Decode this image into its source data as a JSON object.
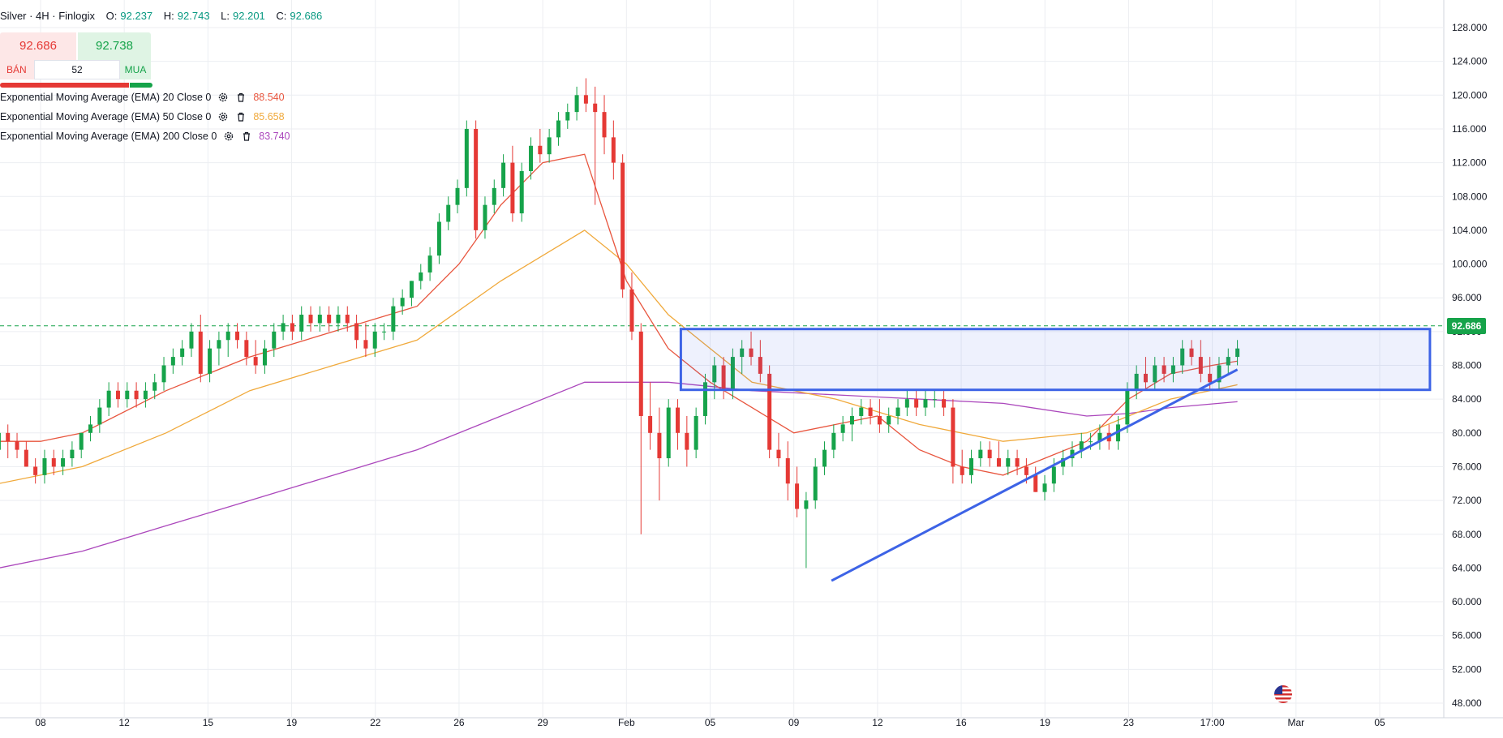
{
  "header": {
    "symbol": "Silver · 4H · Finlogix",
    "open_label": "O:",
    "open": "92.237",
    "high_label": "H:",
    "high": "92.743",
    "low_label": "L:",
    "low": "92.201",
    "close_label": "C:",
    "close": "92.686"
  },
  "trade_panel": {
    "sell_price": "92.686",
    "buy_price": "92.738",
    "sell_label": "BÁN",
    "buy_label": "MUA",
    "spread": "52"
  },
  "indicators": [
    {
      "label": "Exponential Moving Average (EMA) 20 Close 0",
      "value": "88.540",
      "color": "#e8553e"
    },
    {
      "label": "Exponential Moving Average (EMA) 50 Close 0",
      "value": "85.658",
      "color": "#f0a93b"
    },
    {
      "label": "Exponential Moving Average (EMA) 200 Close 0",
      "value": "83.740",
      "color": "#ab47bc"
    }
  ],
  "price_tag": "92.686",
  "colors": {
    "up": "#16a34a",
    "down": "#e53935",
    "drawing": "#3d63e6",
    "grid": "#eceef2"
  },
  "icons": [
    "gear-icon",
    "trash-icon",
    "us-flag-icon"
  ],
  "chart_data": {
    "type": "candlestick",
    "y_axis": {
      "range": [
        46,
        130
      ],
      "ticks": [
        128,
        124,
        120,
        116,
        112,
        108,
        104,
        100,
        96,
        92,
        88,
        84,
        80,
        76,
        72,
        68,
        64,
        60,
        56,
        52,
        48
      ],
      "tick_labels": [
        "128.000",
        "124.000",
        "120.000",
        "116.000",
        "112.000",
        "108.000",
        "104.000",
        "100.000",
        "96.000",
        "92.000",
        "88.000",
        "84.000",
        "80.000",
        "76.000",
        "72.000",
        "68.000",
        "64.000",
        "60.000",
        "56.000",
        "52.000",
        "48.000"
      ]
    },
    "x_axis": {
      "labels": [
        "08",
        "12",
        "15",
        "19",
        "22",
        "26",
        "29",
        "Feb",
        "05",
        "09",
        "12",
        "16",
        "19",
        "23",
        "17:00",
        "Mar",
        "05"
      ],
      "label_bars": [
        10,
        30,
        50,
        70,
        90,
        110,
        130,
        150,
        170,
        190,
        210,
        230,
        250,
        270,
        290,
        310,
        330
      ]
    },
    "last_price": 92.686,
    "ohlc_keys": [
      "open",
      "high",
      "low",
      "close"
    ],
    "candles": [
      [
        78,
        82,
        77,
        80
      ],
      [
        80,
        81,
        77,
        79
      ],
      [
        79,
        80,
        77,
        78
      ],
      [
        78,
        79,
        76,
        76
      ],
      [
        76,
        77,
        74,
        75
      ],
      [
        75,
        78,
        74,
        77
      ],
      [
        77,
        78,
        75,
        76
      ],
      [
        76,
        78,
        75,
        77
      ],
      [
        77,
        79,
        76,
        78
      ],
      [
        78,
        80,
        77,
        80
      ],
      [
        80,
        82,
        79,
        81
      ],
      [
        81,
        84,
        80,
        83
      ],
      [
        83,
        86,
        82,
        85
      ],
      [
        85,
        86,
        83,
        84
      ],
      [
        84,
        86,
        83,
        85
      ],
      [
        85,
        86,
        83,
        84
      ],
      [
        84,
        86,
        83,
        85
      ],
      [
        85,
        87,
        84,
        86
      ],
      [
        86,
        89,
        85,
        88
      ],
      [
        88,
        90,
        87,
        89
      ],
      [
        89,
        91,
        88,
        90
      ],
      [
        90,
        93,
        89,
        92
      ],
      [
        92,
        94,
        86,
        87
      ],
      [
        87,
        91,
        86,
        90
      ],
      [
        90,
        92,
        88,
        91
      ],
      [
        91,
        93,
        89,
        92
      ],
      [
        92,
        93,
        90,
        91
      ],
      [
        91,
        92,
        88,
        89
      ],
      [
        89,
        91,
        87,
        88
      ],
      [
        88,
        91,
        87,
        90
      ],
      [
        90,
        93,
        89,
        92
      ],
      [
        92,
        94,
        91,
        93
      ],
      [
        93,
        94,
        91,
        92
      ],
      [
        92,
        95,
        91,
        94
      ],
      [
        94,
        95,
        92,
        93
      ],
      [
        93,
        95,
        92,
        94
      ],
      [
        94,
        95,
        92,
        93
      ],
      [
        93,
        95,
        92,
        94
      ],
      [
        94,
        95,
        92,
        93
      ],
      [
        93,
        94,
        90,
        91
      ],
      [
        91,
        93,
        89,
        90
      ],
      [
        90,
        93,
        89,
        92
      ],
      [
        92,
        93,
        91,
        92
      ],
      [
        92,
        96,
        91,
        95
      ],
      [
        95,
        97,
        94,
        96
      ],
      [
        96,
        98,
        95,
        98
      ],
      [
        98,
        100,
        97,
        99
      ],
      [
        99,
        102,
        98,
        101
      ],
      [
        101,
        106,
        100,
        105
      ],
      [
        105,
        108,
        104,
        107
      ],
      [
        107,
        110,
        106,
        109
      ],
      [
        109,
        117,
        108,
        116
      ],
      [
        116,
        117,
        103,
        104
      ],
      [
        104,
        108,
        103,
        107
      ],
      [
        107,
        110,
        106,
        109
      ],
      [
        109,
        113,
        108,
        112
      ],
      [
        112,
        114,
        105,
        106
      ],
      [
        106,
        112,
        105,
        111
      ],
      [
        111,
        115,
        110,
        114
      ],
      [
        114,
        116,
        112,
        113
      ],
      [
        113,
        116,
        112,
        115
      ],
      [
        115,
        118,
        114,
        117
      ],
      [
        117,
        119,
        116,
        118
      ],
      [
        118,
        121,
        117,
        120
      ],
      [
        120,
        122,
        118,
        119
      ],
      [
        119,
        121,
        107,
        118
      ],
      [
        118,
        120,
        113,
        115
      ],
      [
        115,
        117,
        110,
        112
      ],
      [
        112,
        113,
        96,
        97
      ],
      [
        97,
        99,
        91,
        92
      ],
      [
        92,
        93,
        68,
        82
      ],
      [
        82,
        86,
        78,
        80
      ],
      [
        80,
        83,
        72,
        77
      ],
      [
        77,
        84,
        76,
        83
      ],
      [
        83,
        84,
        78,
        80
      ],
      [
        80,
        82,
        76,
        78
      ],
      [
        78,
        83,
        77,
        82
      ],
      [
        82,
        87,
        81,
        86
      ],
      [
        86,
        89,
        84,
        88
      ],
      [
        88,
        89,
        84,
        85
      ],
      [
        85,
        90,
        84,
        89
      ],
      [
        89,
        91,
        87,
        90
      ],
      [
        90,
        92,
        88,
        89
      ],
      [
        89,
        91,
        86,
        87
      ],
      [
        87,
        88,
        77,
        78
      ],
      [
        78,
        80,
        76,
        77
      ],
      [
        77,
        79,
        72,
        74
      ],
      [
        74,
        76,
        70,
        71
      ],
      [
        71,
        73,
        64,
        72
      ],
      [
        72,
        77,
        71,
        76
      ],
      [
        76,
        79,
        75,
        78
      ],
      [
        78,
        81,
        77,
        80
      ],
      [
        80,
        82,
        79,
        81
      ],
      [
        81,
        83,
        79,
        82
      ],
      [
        82,
        84,
        81,
        83
      ],
      [
        83,
        84,
        81,
        82
      ],
      [
        82,
        84,
        80,
        81
      ],
      [
        81,
        83,
        80,
        82
      ],
      [
        82,
        84,
        81,
        83
      ],
      [
        83,
        85,
        82,
        84
      ],
      [
        84,
        85,
        82,
        83
      ],
      [
        83,
        85,
        82,
        84
      ],
      [
        84,
        85,
        83,
        84
      ],
      [
        84,
        85,
        82,
        83
      ],
      [
        83,
        84,
        74,
        76
      ],
      [
        76,
        78,
        74,
        75
      ],
      [
        75,
        78,
        74,
        77
      ],
      [
        77,
        79,
        76,
        78
      ],
      [
        78,
        79,
        76,
        77
      ],
      [
        77,
        79,
        76,
        76
      ],
      [
        76,
        78,
        75,
        77
      ],
      [
        77,
        78,
        75,
        76
      ],
      [
        76,
        77,
        74,
        75
      ],
      [
        75,
        76,
        73,
        73
      ],
      [
        73,
        75,
        72,
        74
      ],
      [
        74,
        77,
        73,
        76
      ],
      [
        76,
        78,
        75,
        77
      ],
      [
        77,
        79,
        76,
        78
      ],
      [
        78,
        80,
        77,
        79
      ],
      [
        79,
        80,
        78,
        79
      ],
      [
        79,
        81,
        78,
        80
      ],
      [
        80,
        81,
        78,
        79
      ],
      [
        79,
        82,
        78,
        81
      ],
      [
        81,
        86,
        80,
        85
      ],
      [
        85,
        88,
        84,
        87
      ],
      [
        87,
        89,
        85,
        86
      ],
      [
        86,
        89,
        85,
        88
      ],
      [
        88,
        89,
        86,
        87
      ],
      [
        87,
        89,
        86,
        88
      ],
      [
        88,
        91,
        87,
        90
      ],
      [
        90,
        91,
        88,
        89
      ],
      [
        89,
        91,
        86,
        87
      ],
      [
        87,
        89,
        85,
        86
      ],
      [
        86,
        89,
        85,
        88
      ],
      [
        88,
        90,
        87,
        89
      ],
      [
        89,
        91,
        88,
        90
      ]
    ],
    "ema20": [
      [
        0,
        79
      ],
      [
        10,
        79
      ],
      [
        20,
        80
      ],
      [
        40,
        85
      ],
      [
        60,
        89
      ],
      [
        80,
        92
      ],
      [
        100,
        95
      ],
      [
        110,
        100
      ],
      [
        120,
        107
      ],
      [
        130,
        112
      ],
      [
        140,
        113
      ],
      [
        150,
        98
      ],
      [
        160,
        90
      ],
      [
        170,
        86
      ],
      [
        180,
        83
      ],
      [
        190,
        80
      ],
      [
        200,
        81
      ],
      [
        210,
        82
      ],
      [
        220,
        78
      ],
      [
        230,
        76
      ],
      [
        240,
        75
      ],
      [
        250,
        77
      ],
      [
        260,
        79
      ],
      [
        270,
        84
      ],
      [
        280,
        87
      ],
      [
        290,
        88
      ],
      [
        296,
        88.5
      ]
    ],
    "ema50": [
      [
        0,
        74
      ],
      [
        20,
        76
      ],
      [
        40,
        80
      ],
      [
        60,
        85
      ],
      [
        80,
        88
      ],
      [
        100,
        91
      ],
      [
        120,
        98
      ],
      [
        140,
        104
      ],
      [
        150,
        100
      ],
      [
        160,
        94
      ],
      [
        170,
        90
      ],
      [
        180,
        86
      ],
      [
        200,
        84
      ],
      [
        220,
        81
      ],
      [
        240,
        79
      ],
      [
        260,
        80
      ],
      [
        270,
        82
      ],
      [
        280,
        84
      ],
      [
        296,
        85.7
      ]
    ],
    "ema200": [
      [
        0,
        64
      ],
      [
        20,
        66
      ],
      [
        40,
        69
      ],
      [
        60,
        72
      ],
      [
        80,
        75
      ],
      [
        100,
        78
      ],
      [
        120,
        82
      ],
      [
        140,
        86
      ],
      [
        160,
        86
      ],
      [
        180,
        85
      ],
      [
        200,
        84.5
      ],
      [
        220,
        84
      ],
      [
        240,
        83.5
      ],
      [
        260,
        82
      ],
      [
        270,
        82.3
      ],
      [
        280,
        83
      ],
      [
        296,
        83.7
      ]
    ],
    "annotations": {
      "rectangle": {
        "bar_start": 163,
        "bar_end": 342,
        "price_top": 92.3,
        "price_bottom": 85.1
      },
      "trendline": {
        "from": [
          199,
          62.5
        ],
        "to": [
          296,
          87.5
        ]
      }
    }
  }
}
